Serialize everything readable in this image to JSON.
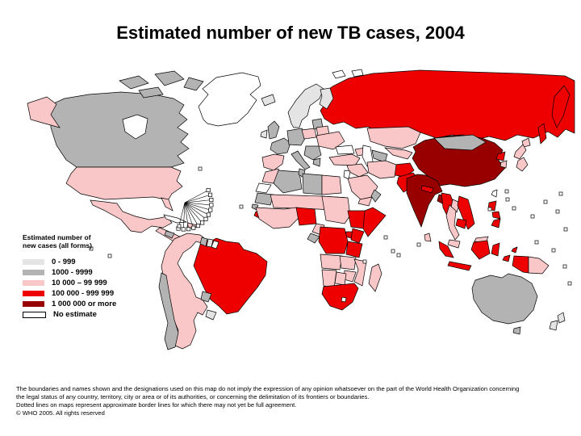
{
  "title": "Estimated number of new TB cases, 2004",
  "legend": {
    "title_line1": "Estimated number of",
    "title_line2": "new cases (all forms)",
    "items": [
      {
        "label": "0 - 999",
        "category": "cat1"
      },
      {
        "label": "1000 - 9999",
        "category": "cat2"
      },
      {
        "label": "10 000 – 99 999",
        "category": "cat3"
      },
      {
        "label": "100 000 -  999 999",
        "category": "cat4"
      },
      {
        "label": "1 000 000 or more",
        "category": "cat5"
      },
      {
        "label": "No estimate",
        "category": "noest"
      }
    ]
  },
  "categories": {
    "cat1": "#E4E4E4",
    "cat2": "#B3B3B3",
    "cat3": "#F9C7C7",
    "cat4": "#EE0000",
    "cat5": "#980000",
    "noest": "#FFFFFF"
  },
  "footnotes": [
    "The boundaries and names shown and the designations used on this map do not imply the expression of any opinion whatsoever on the part of the World Health Organization concerning",
    "the legal status of any country, territory, city or area or of its authorities, or concerning the delimitation of its frontiers or boundaries.",
    "Dotted lines on maps represent approximate border lines for which there may not yet be full agreement.",
    "© WHO 2005. All rights reserved"
  ],
  "map_regions": [
    {
      "name": "russia",
      "category": "cat4"
    },
    {
      "name": "kamchatka",
      "category": "cat4"
    },
    {
      "name": "sakhalin",
      "category": "cat4"
    },
    {
      "name": "canada",
      "category": "cat2"
    },
    {
      "name": "arctic_islands",
      "category": "cat2"
    },
    {
      "name": "hudson_bay",
      "category": "noest"
    },
    {
      "name": "alaska",
      "category": "cat3"
    },
    {
      "name": "usa",
      "category": "cat3"
    },
    {
      "name": "florida",
      "category": "cat3"
    },
    {
      "name": "mexico",
      "category": "cat3"
    },
    {
      "name": "central_america",
      "category": "cat3"
    },
    {
      "name": "belize_honduras",
      "category": "cat2"
    },
    {
      "name": "cuba",
      "category": "noest"
    },
    {
      "name": "hispaniola",
      "category": "cat3"
    },
    {
      "name": "greenland",
      "category": "noest"
    },
    {
      "name": "svalbard",
      "category": "noest"
    },
    {
      "name": "iceland",
      "category": "cat1"
    },
    {
      "name": "andean_cone",
      "category": "cat3"
    },
    {
      "name": "chile",
      "category": "cat2"
    },
    {
      "name": "brazil",
      "category": "cat4"
    },
    {
      "name": "paraguay",
      "category": "cat2"
    },
    {
      "name": "uruguay",
      "category": "cat1"
    },
    {
      "name": "guyana",
      "category": "cat2"
    },
    {
      "name": "suriname",
      "category": "cat1"
    },
    {
      "name": "french_guiana",
      "category": "noest"
    },
    {
      "name": "norway_sweden",
      "category": "cat1"
    },
    {
      "name": "finland",
      "category": "cat1"
    },
    {
      "name": "uk",
      "category": "cat2"
    },
    {
      "name": "ireland",
      "category": "cat1"
    },
    {
      "name": "france",
      "category": "cat2"
    },
    {
      "name": "germany_central",
      "category": "cat2"
    },
    {
      "name": "iberia",
      "category": "cat3"
    },
    {
      "name": "italy",
      "category": "cat2"
    },
    {
      "name": "balkans",
      "category": "cat2"
    },
    {
      "name": "greece",
      "category": "cat2"
    },
    {
      "name": "poland",
      "category": "cat3"
    },
    {
      "name": "baltics",
      "category": "cat2"
    },
    {
      "name": "belarus",
      "category": "cat3"
    },
    {
      "name": "ukraine_romania",
      "category": "cat3"
    },
    {
      "name": "turkey",
      "category": "cat3"
    },
    {
      "name": "caucasus",
      "category": "cat3"
    },
    {
      "name": "black_sea",
      "category": "noest"
    },
    {
      "name": "caspian_sea",
      "category": "noest"
    },
    {
      "name": "kazakhstan",
      "category": "cat3"
    },
    {
      "name": "uzbek_group",
      "category": "cat3"
    },
    {
      "name": "turkmenistan",
      "category": "cat2"
    },
    {
      "name": "china",
      "category": "cat5"
    },
    {
      "name": "mongolia",
      "category": "cat2"
    },
    {
      "name": "north_korea",
      "category": "cat4"
    },
    {
      "name": "south_korea",
      "category": "cat3"
    },
    {
      "name": "japan",
      "category": "cat3"
    },
    {
      "name": "taiwan",
      "category": "noest"
    },
    {
      "name": "afghanistan",
      "category": "cat4"
    },
    {
      "name": "pakistan",
      "category": "cat4"
    },
    {
      "name": "iran",
      "category": "cat3"
    },
    {
      "name": "syria_iraq",
      "category": "cat3"
    },
    {
      "name": "jordan_israel",
      "category": "noest"
    },
    {
      "name": "saudi",
      "category": "cat3"
    },
    {
      "name": "yemen",
      "category": "cat3"
    },
    {
      "name": "oman",
      "category": "cat2"
    },
    {
      "name": "india",
      "category": "cat5"
    },
    {
      "name": "nepal",
      "category": "cat4"
    },
    {
      "name": "bangladesh",
      "category": "cat5"
    },
    {
      "name": "sri_lanka",
      "category": "cat3"
    },
    {
      "name": "myanmar",
      "category": "cat4"
    },
    {
      "name": "laos",
      "category": "cat3"
    },
    {
      "name": "thailand",
      "category": "cat3"
    },
    {
      "name": "vietnam",
      "category": "cat4"
    },
    {
      "name": "cambodia",
      "category": "cat4"
    },
    {
      "name": "malaysia",
      "category": "cat3"
    },
    {
      "name": "malaysia_borneo",
      "category": "cat3"
    },
    {
      "name": "philippines",
      "category": "cat4"
    },
    {
      "name": "indonesia",
      "category": "cat4"
    },
    {
      "name": "new_guinea_west",
      "category": "cat4"
    },
    {
      "name": "papua_new_guinea",
      "category": "cat3"
    },
    {
      "name": "australia",
      "category": "cat2"
    },
    {
      "name": "tasmania",
      "category": "cat2"
    },
    {
      "name": "new_zealand",
      "category": "cat1"
    },
    {
      "name": "morocco",
      "category": "cat3"
    },
    {
      "name": "western_sahara",
      "category": "noest"
    },
    {
      "name": "algeria",
      "category": "cat2"
    },
    {
      "name": "tunisia",
      "category": "cat2"
    },
    {
      "name": "libya",
      "category": "cat2"
    },
    {
      "name": "egypt",
      "category": "cat3"
    },
    {
      "name": "mauritania",
      "category": "cat2"
    },
    {
      "name": "sahel_band",
      "category": "cat3"
    },
    {
      "name": "senegal",
      "category": "cat2"
    },
    {
      "name": "sierra_leone",
      "category": "cat4"
    },
    {
      "name": "west_africa",
      "category": "cat3"
    },
    {
      "name": "nigeria",
      "category": "cat4"
    },
    {
      "name": "cameroon",
      "category": "cat3"
    },
    {
      "name": "gabon",
      "category": "cat2"
    },
    {
      "name": "sudan",
      "category": "cat3"
    },
    {
      "name": "ethiopia",
      "category": "cat4"
    },
    {
      "name": "somalia",
      "category": "cat4"
    },
    {
      "name": "uganda",
      "category": "cat4"
    },
    {
      "name": "kenya",
      "category": "cat4"
    },
    {
      "name": "dr_congo",
      "category": "cat4"
    },
    {
      "name": "tanzania",
      "category": "cat4"
    },
    {
      "name": "angola",
      "category": "cat3"
    },
    {
      "name": "zambia",
      "category": "cat3"
    },
    {
      "name": "mozambique",
      "category": "cat3"
    },
    {
      "name": "zimbabwe",
      "category": "cat3"
    },
    {
      "name": "namibia",
      "category": "cat3"
    },
    {
      "name": "botswana",
      "category": "cat3"
    },
    {
      "name": "south_africa",
      "category": "cat4"
    },
    {
      "name": "lesotho",
      "category": "noest"
    },
    {
      "name": "madagascar",
      "category": "cat3"
    }
  ]
}
